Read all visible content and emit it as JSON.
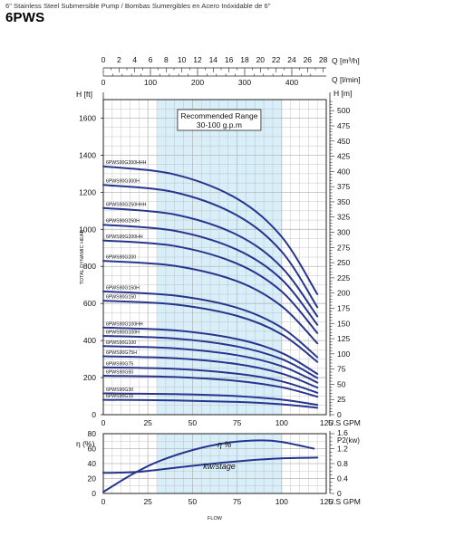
{
  "header": {
    "subtitle": "6\" Stainless Steel Submersible Pump / Bombas Sumergibles en Acero Inóxidable de 6\"",
    "title": "6PWS"
  },
  "colors": {
    "curve": "#26358e",
    "recommended_band": "#d8eef9",
    "grid": "#b9b9b9",
    "axis": "#222222"
  },
  "chart_data": [
    {
      "type": "line",
      "ylabel": "TOTAL DYNAMIC HEAD",
      "y_unit_label": "H [ft]",
      "y2_unit_label": "H [m]",
      "x_unit_label": "U.S GPM",
      "top_axis_1_label": "Q [m³/h]",
      "top_axis_2_label": "Q [l/min]",
      "xlim": [
        0,
        125
      ],
      "ylim": [
        0,
        1700
      ],
      "x_ticks": [
        0,
        25,
        50,
        75,
        100,
        125
      ],
      "y_ticks": [
        0,
        200,
        400,
        600,
        800,
        1000,
        1200,
        1400,
        1600
      ],
      "y2_ticks": [
        0,
        25,
        50,
        75,
        100,
        125,
        150,
        175,
        200,
        225,
        250,
        275,
        300,
        325,
        350,
        375,
        400,
        425,
        450,
        475,
        500
      ],
      "top_axis_1_ticks": [
        0,
        2,
        4,
        6,
        8,
        10,
        12,
        14,
        16,
        18,
        20,
        22,
        24,
        26,
        28
      ],
      "top_axis_2_ticks": [
        0,
        100,
        200,
        300,
        400
      ],
      "grid": true,
      "recommended_range": {
        "label": "Recommended Range",
        "sublabel": "30-100 g.p.m",
        "x": [
          30,
          100
        ]
      },
      "series": [
        {
          "name": "6PWS90G300HHH",
          "values": [
            [
              0,
              1340
            ],
            [
              40,
              1296
            ],
            [
              75,
              1165
            ],
            [
              100,
              960
            ],
            [
              120,
              650
            ]
          ]
        },
        {
          "name": "6PWS90G300H",
          "values": [
            [
              0,
              1240
            ],
            [
              40,
              1200
            ],
            [
              75,
              1075
            ],
            [
              100,
              880
            ],
            [
              120,
              580
            ]
          ]
        },
        {
          "name": "6PWS90G250HHH",
          "values": [
            [
              0,
              1115
            ],
            [
              40,
              1080
            ],
            [
              75,
              970
            ],
            [
              100,
              795
            ],
            [
              120,
              530
            ]
          ]
        },
        {
          "name": "6PWS90G250H",
          "values": [
            [
              0,
              1025
            ],
            [
              40,
              992
            ],
            [
              75,
              890
            ],
            [
              100,
              730
            ],
            [
              120,
              485
            ]
          ]
        },
        {
          "name": "6PWS90G200HH",
          "values": [
            [
              0,
              940
            ],
            [
              40,
              910
            ],
            [
              75,
              815
            ],
            [
              100,
              665
            ],
            [
              120,
              440
            ]
          ]
        },
        {
          "name": "6PWS90G200",
          "values": [
            [
              0,
              830
            ],
            [
              40,
              803
            ],
            [
              75,
              720
            ],
            [
              100,
              585
            ],
            [
              120,
              385
            ]
          ]
        },
        {
          "name": "6PWS90G150H",
          "values": [
            [
              0,
              665
            ],
            [
              40,
              643
            ],
            [
              75,
              577
            ],
            [
              100,
              470
            ],
            [
              120,
              310
            ]
          ]
        },
        {
          "name": "6PWS90G150",
          "values": [
            [
              0,
              615
            ],
            [
              40,
              595
            ],
            [
              75,
              533
            ],
            [
              100,
              434
            ],
            [
              120,
              285
            ]
          ]
        },
        {
          "name": "6PWS90G100HH",
          "values": [
            [
              0,
              470
            ],
            [
              40,
              455
            ],
            [
              75,
              408
            ],
            [
              100,
              333
            ],
            [
              120,
              220
            ]
          ]
        },
        {
          "name": "6PWS90G100H",
          "values": [
            [
              0,
              425
            ],
            [
              40,
              411
            ],
            [
              75,
              368
            ],
            [
              100,
              300
            ],
            [
              120,
              198
            ]
          ]
        },
        {
          "name": "6PWS90G100",
          "values": [
            [
              0,
              370
            ],
            [
              40,
              358
            ],
            [
              75,
              321
            ],
            [
              100,
              262
            ],
            [
              120,
              173
            ]
          ]
        },
        {
          "name": "6PWS90G75H",
          "values": [
            [
              0,
              315
            ],
            [
              40,
              305
            ],
            [
              75,
              273
            ],
            [
              100,
              222
            ],
            [
              120,
              146
            ]
          ]
        },
        {
          "name": "6PWS90G75",
          "values": [
            [
              0,
              255
            ],
            [
              40,
              247
            ],
            [
              75,
              221
            ],
            [
              100,
              180
            ],
            [
              120,
              118
            ]
          ]
        },
        {
          "name": "6PWS90G50",
          "values": [
            [
              0,
              210
            ],
            [
              40,
              203
            ],
            [
              75,
              182
            ],
            [
              100,
              148
            ],
            [
              120,
              97
            ]
          ]
        },
        {
          "name": "6PWS90G30",
          "values": [
            [
              0,
              115
            ],
            [
              40,
              111
            ],
            [
              75,
              100
            ],
            [
              100,
              81
            ],
            [
              120,
              53
            ]
          ]
        },
        {
          "name": "6PWS90G15",
          "values": [
            [
              0,
              80
            ],
            [
              40,
              77
            ],
            [
              75,
              69
            ],
            [
              100,
              56
            ],
            [
              120,
              37
            ]
          ]
        }
      ]
    },
    {
      "type": "line",
      "xlabel": "FLOW",
      "y_unit_label": "η (%)",
      "y2_unit_label": "P2(kw)",
      "x_unit_label": "U.S GPM",
      "xlim": [
        0,
        125
      ],
      "ylim": [
        0,
        80
      ],
      "y2lim": [
        0,
        1.6
      ],
      "x_ticks": [
        0,
        25,
        50,
        75,
        100,
        125
      ],
      "y_ticks": [
        0,
        20,
        40,
        60,
        80
      ],
      "y2_ticks": [
        0,
        0.4,
        0.8,
        1.2,
        1.6
      ],
      "grid": true,
      "series": [
        {
          "name": "η %",
          "axis": "left",
          "values": [
            [
              0,
              2
            ],
            [
              15,
              24
            ],
            [
              30,
              42
            ],
            [
              50,
              58
            ],
            [
              70,
              68
            ],
            [
              88,
              71
            ],
            [
              100,
              69
            ],
            [
              118,
              60
            ]
          ]
        },
        {
          "name": "kw/stage",
          "axis": "right",
          "values": [
            [
              0,
              0.55
            ],
            [
              20,
              0.58
            ],
            [
              50,
              0.74
            ],
            [
              80,
              0.88
            ],
            [
              100,
              0.94
            ],
            [
              120,
              0.96
            ]
          ]
        }
      ]
    }
  ]
}
